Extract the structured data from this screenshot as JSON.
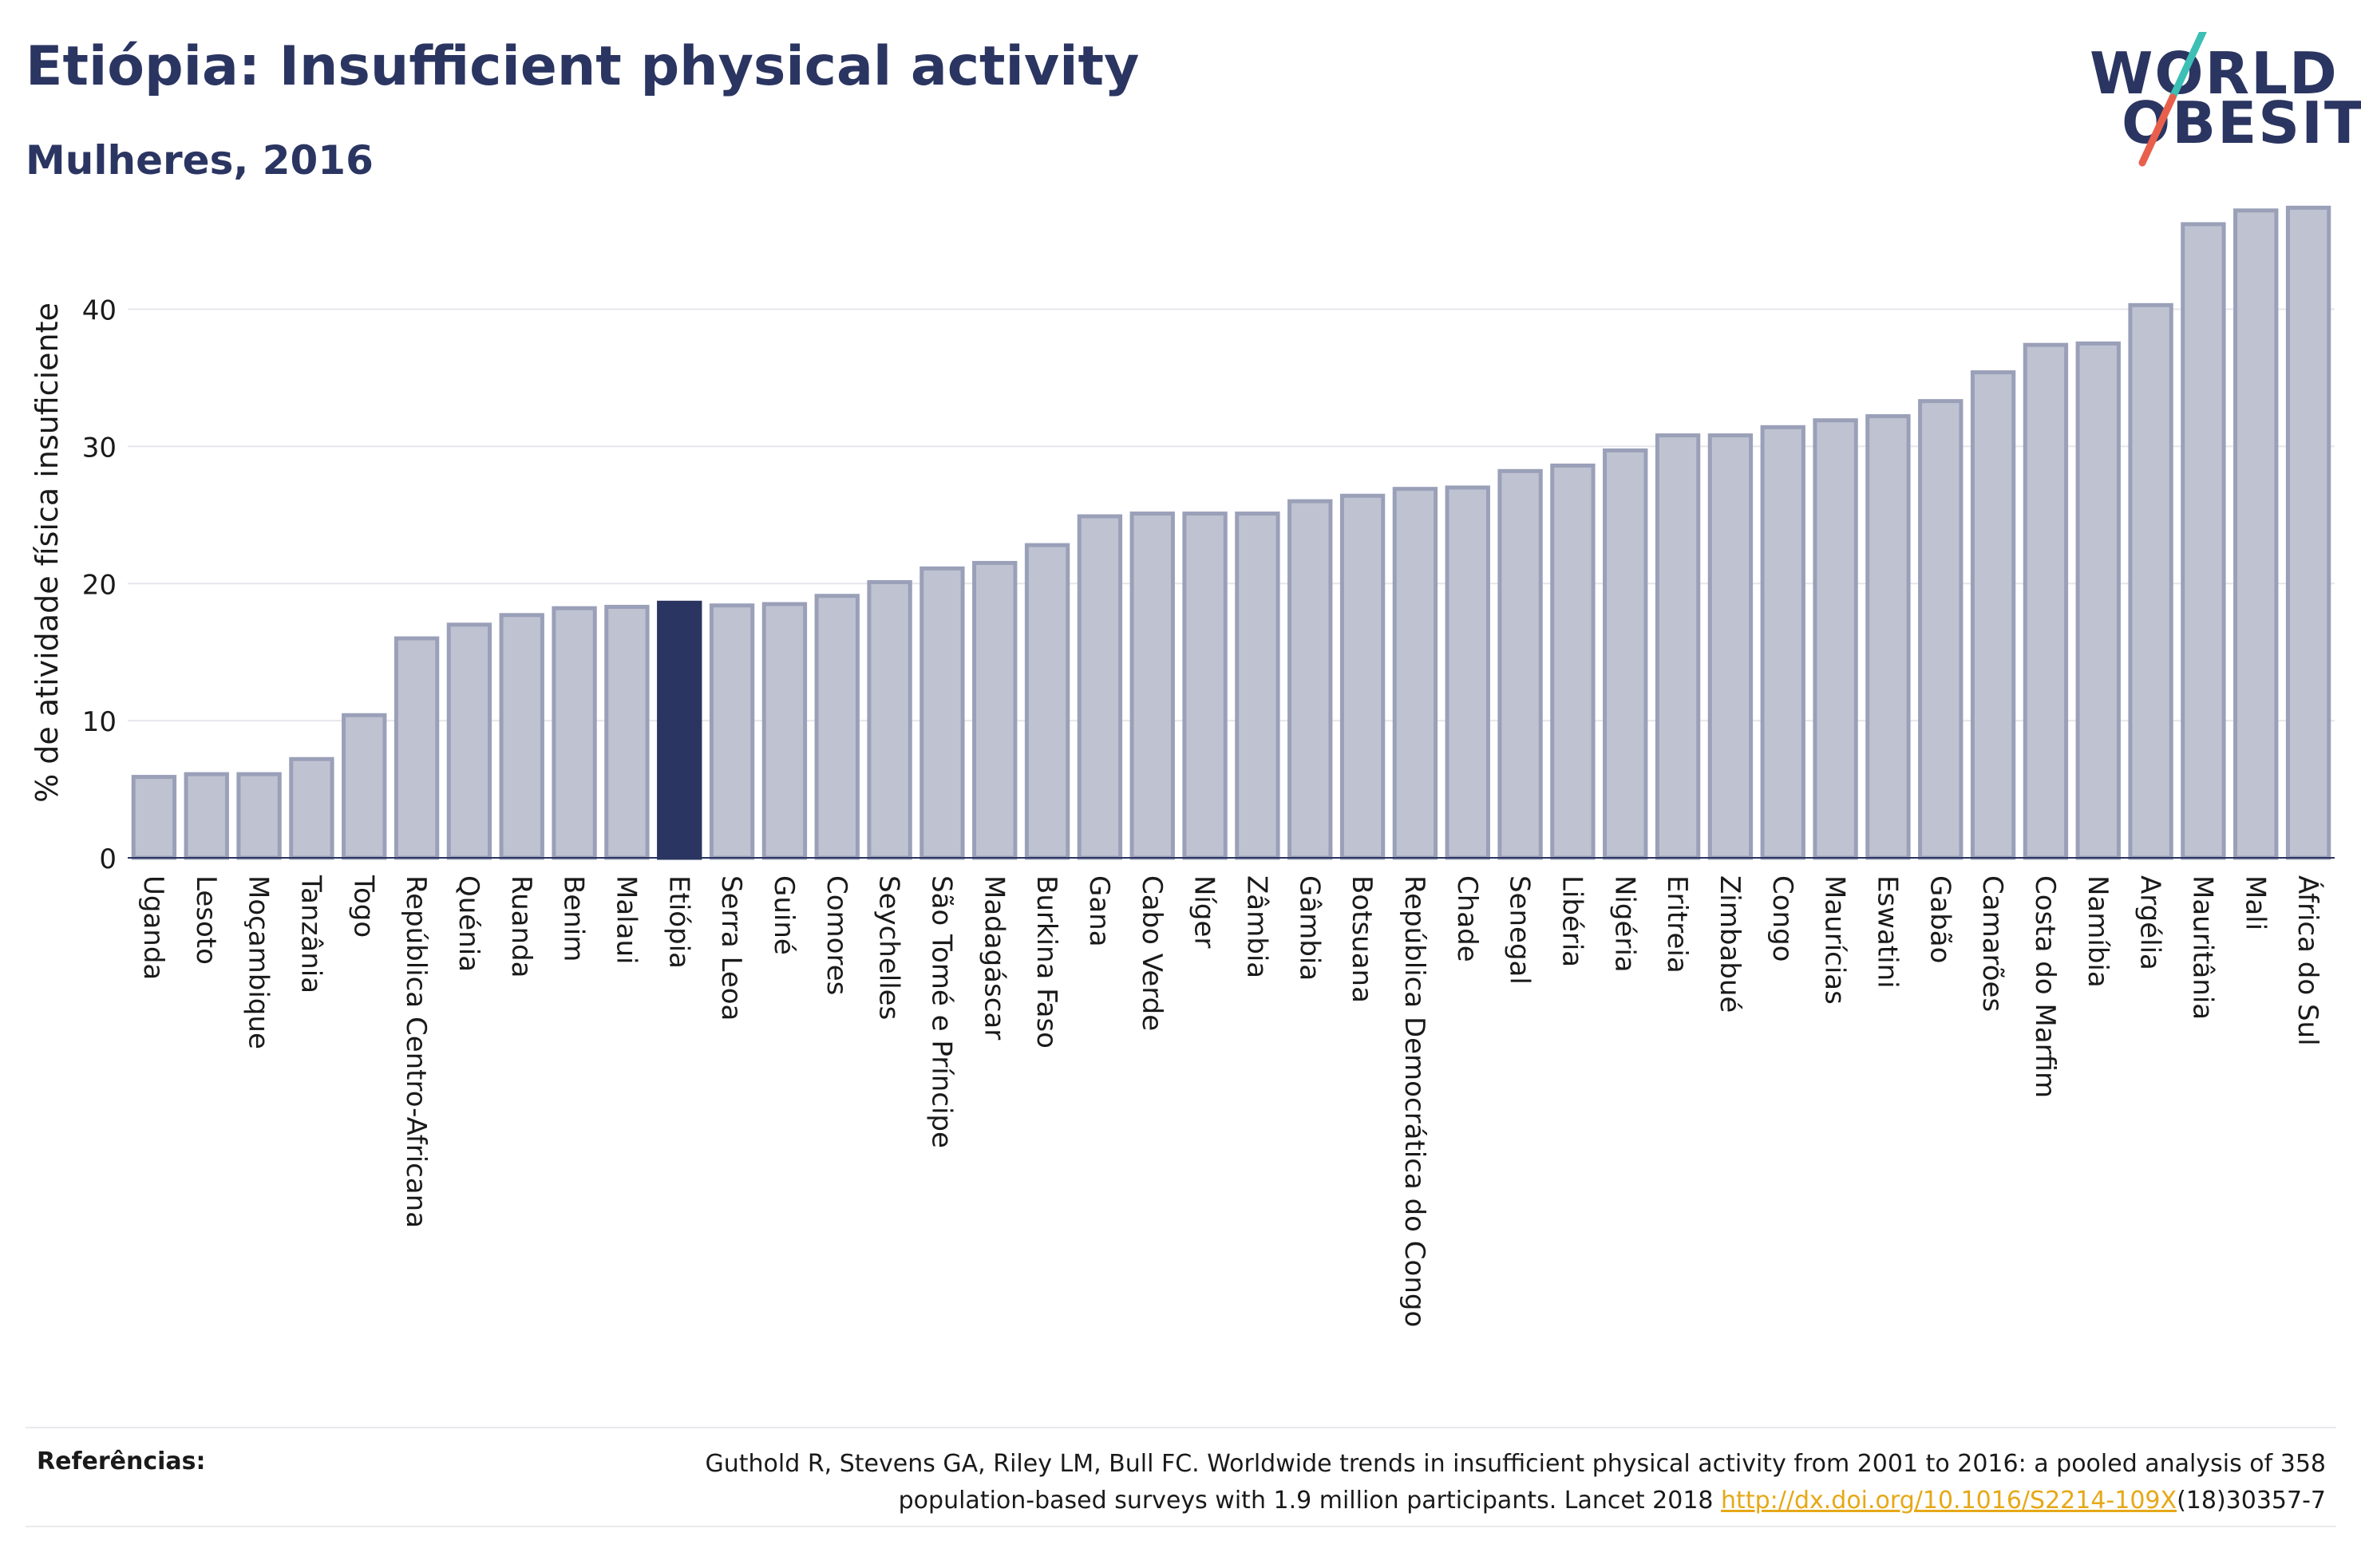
{
  "header": {
    "title": "Etiópia: Insufficient physical activity",
    "subtitle": "Mulheres, 2016"
  },
  "logo": {
    "line1": "WORLD",
    "line2": "OBESITY",
    "colors": {
      "text": "#2b3561",
      "slash_top": "#3cbfb4",
      "slash_bottom": "#e8604c"
    }
  },
  "references": {
    "label": "Referências:",
    "text_line1": "Guthold R, Stevens GA, Riley LM, Bull FC. Worldwide trends in insufficient physical activity from 2001 to 2016: a pooled analysis of 358",
    "text_line2_prefix": "population-based surveys with 1.9 million participants. Lancet 2018 ",
    "link": "http://dx.doi.org/10.1016/S2214-109X",
    "text_line2_suffix": "(18)30357-7"
  },
  "chart_data": {
    "type": "bar",
    "title": "Etiópia: Insufficient physical activity",
    "subtitle": "Mulheres, 2016",
    "ylabel": "% de atividade física insuficiente",
    "xlabel": "",
    "ylim": [
      0,
      48
    ],
    "yticks": [
      0,
      10,
      20,
      30,
      40
    ],
    "grid": true,
    "highlight": "Etiópia",
    "colors": {
      "bar": "#bfc3d1",
      "bar_edge": "#9aa0b8",
      "highlight": "#2b3561"
    },
    "categories": [
      "Uganda",
      "Lesoto",
      "Moçambique",
      "Tanzânia",
      "Togo",
      "República Centro-Africana",
      "Quénia",
      "Ruanda",
      "Benim",
      "Malaui",
      "Etiópia",
      "Serra Leoa",
      "Guiné",
      "Comores",
      "Seychelles",
      "São Tomé e Príncipe",
      "Madagáscar",
      "Burkina Faso",
      "Gana",
      "Cabo Verde",
      "Níger",
      "Zâmbia",
      "Gâmbia",
      "Botsuana",
      "República Democrática do Congo",
      "Chade",
      "Senegal",
      "Libéria",
      "Nigéria",
      "Eritreia",
      "Zimbabué",
      "Congo",
      "Maurícias",
      "Eswatini",
      "Gabão",
      "Camarões",
      "Costa do Marfim",
      "Namíbia",
      "Argélia",
      "Mauritânia",
      "Mali",
      "África do Sul"
    ],
    "values": [
      5.9,
      6.1,
      6.1,
      7.2,
      10.4,
      16.0,
      17.0,
      17.7,
      18.2,
      18.3,
      18.6,
      18.4,
      18.5,
      19.1,
      20.1,
      21.1,
      21.5,
      22.8,
      24.9,
      25.1,
      25.1,
      25.1,
      26.0,
      26.4,
      26.9,
      27.0,
      28.2,
      28.6,
      29.7,
      30.8,
      30.8,
      31.4,
      31.9,
      32.2,
      33.3,
      35.4,
      37.4,
      37.5,
      40.3,
      46.2,
      47.2,
      47.4
    ]
  }
}
